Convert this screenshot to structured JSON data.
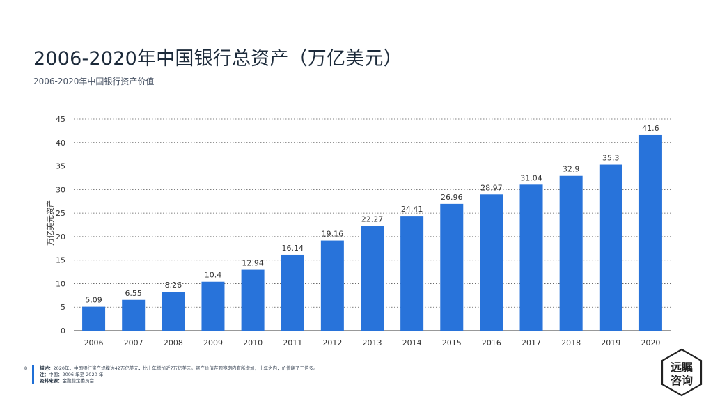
{
  "page": {
    "title": "2006-2020年中国银行总资产（万亿美元）",
    "subtitle": "2006-2020年中国银行资产价值",
    "page_number": "8"
  },
  "footer": {
    "desc_label": "描述：",
    "desc_text": "2020年，中国银行资产规模达42万亿美元，比上年增加近7万亿美元。资产价值在观察期内有所增加，十年之内，价值翻了三倍多。",
    "note_label": "注：",
    "note_text": "中国；2006 年至 2020 年",
    "source_label": "资料来源：",
    "source_text": "金融稳定委员会"
  },
  "logo": {
    "line1": "远瞩",
    "line2": "咨询"
  },
  "colors": {
    "bar": "#2873da",
    "grid": "#555555",
    "text": "#333333",
    "accent": "#1f6fd6"
  },
  "chart_data": {
    "type": "bar",
    "categories": [
      "2006",
      "2007",
      "2008",
      "2009",
      "2010",
      "2011",
      "2012",
      "2013",
      "2014",
      "2015",
      "2016",
      "2017",
      "2018",
      "2019",
      "2020"
    ],
    "values": [
      5.09,
      6.55,
      8.26,
      10.4,
      12.94,
      16.14,
      19.16,
      22.27,
      24.41,
      26.96,
      28.97,
      31.04,
      32.9,
      35.3,
      41.6
    ],
    "value_labels": [
      "5.09",
      "6.55",
      "8.26",
      "10.4",
      "12.94",
      "16.14",
      "19.16",
      "22.27",
      "24.41",
      "26.96",
      "28.97",
      "31.04",
      "32.9",
      "35.3",
      "41.6"
    ],
    "ylabel": "万亿美元资产",
    "ylim": [
      0,
      45
    ],
    "yticks": [
      "0",
      "5",
      "10",
      "15",
      "20",
      "25",
      "30",
      "35",
      "40",
      "45"
    ],
    "grid": true,
    "legend": "none"
  }
}
